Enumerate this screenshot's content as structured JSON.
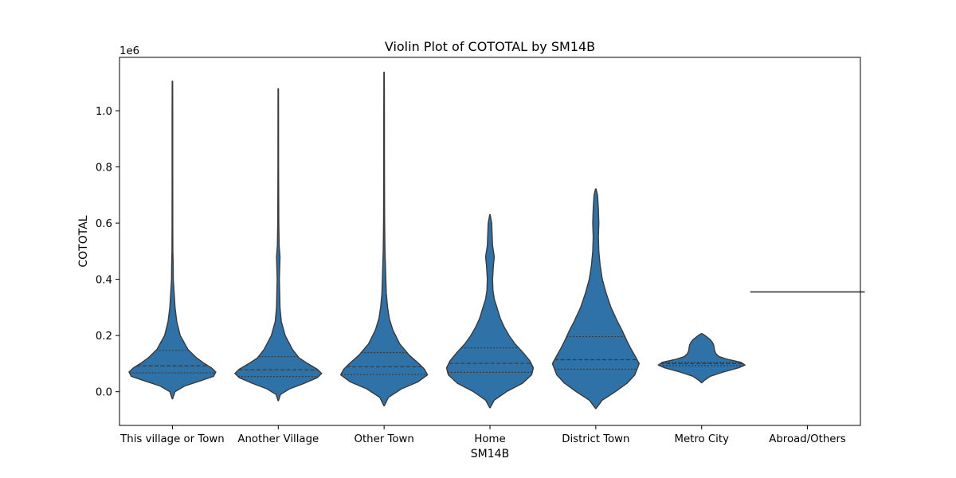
{
  "chart_data": {
    "type": "violin",
    "title": "Violin Plot of COTOTAL by SM14B",
    "xlabel": "SM14B",
    "ylabel": "COTOTAL",
    "y_scale_label": "1e6",
    "y_scale": 1000000,
    "ylim": [
      -120000,
      1190000
    ],
    "yticks": [
      0.0,
      0.2,
      0.4,
      0.6,
      0.8,
      1.0
    ],
    "ytick_labels": [
      "0.0",
      "0.2",
      "0.4",
      "0.6",
      "0.8",
      "1.0"
    ],
    "grid": false,
    "fill_color": "#2f72a8",
    "line_color": "#3a3a3a",
    "categories": [
      "This village or Town",
      "Another Village",
      "Other Town",
      "Home",
      "District Town",
      "Metro City",
      "Abroad/Others"
    ],
    "violins": [
      {
        "category": "This village or Town",
        "profile": [
          [
            -25000,
            0.005
          ],
          [
            0,
            0.06
          ],
          [
            20000,
            0.28
          ],
          [
            40000,
            0.67
          ],
          [
            55000,
            0.95
          ],
          [
            70000,
            1.0
          ],
          [
            85000,
            0.9
          ],
          [
            100000,
            0.74
          ],
          [
            120000,
            0.56
          ],
          [
            150000,
            0.36
          ],
          [
            200000,
            0.18
          ],
          [
            250000,
            0.1
          ],
          [
            300000,
            0.06
          ],
          [
            350000,
            0.04
          ],
          [
            400000,
            0.02
          ],
          [
            450000,
            0.018
          ],
          [
            500000,
            0.01
          ],
          [
            600000,
            0.008
          ],
          [
            800000,
            0.007
          ],
          [
            1000000,
            0.007
          ],
          [
            1105000,
            0.005
          ]
        ],
        "q1": 67000,
        "median": 92000,
        "q3": 147000
      },
      {
        "category": "Another Village",
        "profile": [
          [
            -32000,
            0.005
          ],
          [
            -10000,
            0.05
          ],
          [
            10000,
            0.26
          ],
          [
            30000,
            0.6
          ],
          [
            50000,
            0.9
          ],
          [
            65000,
            1.0
          ],
          [
            80000,
            0.9
          ],
          [
            100000,
            0.68
          ],
          [
            120000,
            0.48
          ],
          [
            150000,
            0.33
          ],
          [
            200000,
            0.16
          ],
          [
            250000,
            0.07
          ],
          [
            300000,
            0.04
          ],
          [
            400000,
            0.025
          ],
          [
            480000,
            0.04
          ],
          [
            520000,
            0.02
          ],
          [
            600000,
            0.012
          ],
          [
            800000,
            0.007
          ],
          [
            1000000,
            0.006
          ],
          [
            1078000,
            0.005
          ]
        ],
        "q1": 54000,
        "median": 78000,
        "q3": 125000
      },
      {
        "category": "Other Town",
        "profile": [
          [
            -50000,
            0.005
          ],
          [
            -20000,
            0.1
          ],
          [
            10000,
            0.4
          ],
          [
            35000,
            0.78
          ],
          [
            60000,
            1.0
          ],
          [
            80000,
            0.93
          ],
          [
            100000,
            0.8
          ],
          [
            130000,
            0.58
          ],
          [
            170000,
            0.36
          ],
          [
            220000,
            0.2
          ],
          [
            260000,
            0.12
          ],
          [
            300000,
            0.08
          ],
          [
            350000,
            0.05
          ],
          [
            400000,
            0.04
          ],
          [
            500000,
            0.02
          ],
          [
            600000,
            0.012
          ],
          [
            800000,
            0.008
          ],
          [
            1000000,
            0.007
          ],
          [
            1137000,
            0.005
          ]
        ],
        "q1": 61000,
        "median": 89000,
        "q3": 139000
      },
      {
        "category": "Home",
        "profile": [
          [
            -57000,
            0.005
          ],
          [
            -30000,
            0.1
          ],
          [
            0,
            0.38
          ],
          [
            30000,
            0.75
          ],
          [
            60000,
            0.96
          ],
          [
            85000,
            1.0
          ],
          [
            110000,
            0.92
          ],
          [
            140000,
            0.76
          ],
          [
            170000,
            0.58
          ],
          [
            200000,
            0.44
          ],
          [
            230000,
            0.33
          ],
          [
            260000,
            0.24
          ],
          [
            300000,
            0.16
          ],
          [
            330000,
            0.1
          ],
          [
            360000,
            0.07
          ],
          [
            400000,
            0.06
          ],
          [
            450000,
            0.08
          ],
          [
            480000,
            0.1
          ],
          [
            520000,
            0.06
          ],
          [
            560000,
            0.05
          ],
          [
            600000,
            0.04
          ],
          [
            630000,
            0.005
          ]
        ],
        "q1": 69000,
        "median": 101000,
        "q3": 156000
      },
      {
        "category": "District Town",
        "profile": [
          [
            -60000,
            0.005
          ],
          [
            -30000,
            0.15
          ],
          [
            0,
            0.45
          ],
          [
            30000,
            0.72
          ],
          [
            60000,
            0.9
          ],
          [
            80000,
            0.95
          ],
          [
            100000,
            1.0
          ],
          [
            120000,
            0.93
          ],
          [
            150000,
            0.82
          ],
          [
            180000,
            0.72
          ],
          [
            220000,
            0.6
          ],
          [
            250000,
            0.5
          ],
          [
            300000,
            0.35
          ],
          [
            350000,
            0.24
          ],
          [
            400000,
            0.15
          ],
          [
            450000,
            0.1
          ],
          [
            500000,
            0.07
          ],
          [
            550000,
            0.06
          ],
          [
            600000,
            0.07
          ],
          [
            650000,
            0.06
          ],
          [
            700000,
            0.04
          ],
          [
            722000,
            0.005
          ]
        ],
        "q1": 80000,
        "median": 114000,
        "q3": 196000
      },
      {
        "category": "Metro City",
        "profile": [
          [
            32000,
            0.005
          ],
          [
            40000,
            0.06
          ],
          [
            55000,
            0.2
          ],
          [
            70000,
            0.5
          ],
          [
            85000,
            0.85
          ],
          [
            95000,
            1.0
          ],
          [
            105000,
            0.9
          ],
          [
            115000,
            0.6
          ],
          [
            125000,
            0.4
          ],
          [
            135000,
            0.33
          ],
          [
            145000,
            0.3
          ],
          [
            155000,
            0.29
          ],
          [
            165000,
            0.28
          ],
          [
            175000,
            0.25
          ],
          [
            185000,
            0.2
          ],
          [
            195000,
            0.12
          ],
          [
            202000,
            0.06
          ],
          [
            207000,
            0.005
          ]
        ],
        "q1": 93000,
        "median": 100000,
        "q3": 104000
      },
      {
        "category": "Abroad/Others",
        "profile": [],
        "single_value": 355000
      }
    ]
  }
}
